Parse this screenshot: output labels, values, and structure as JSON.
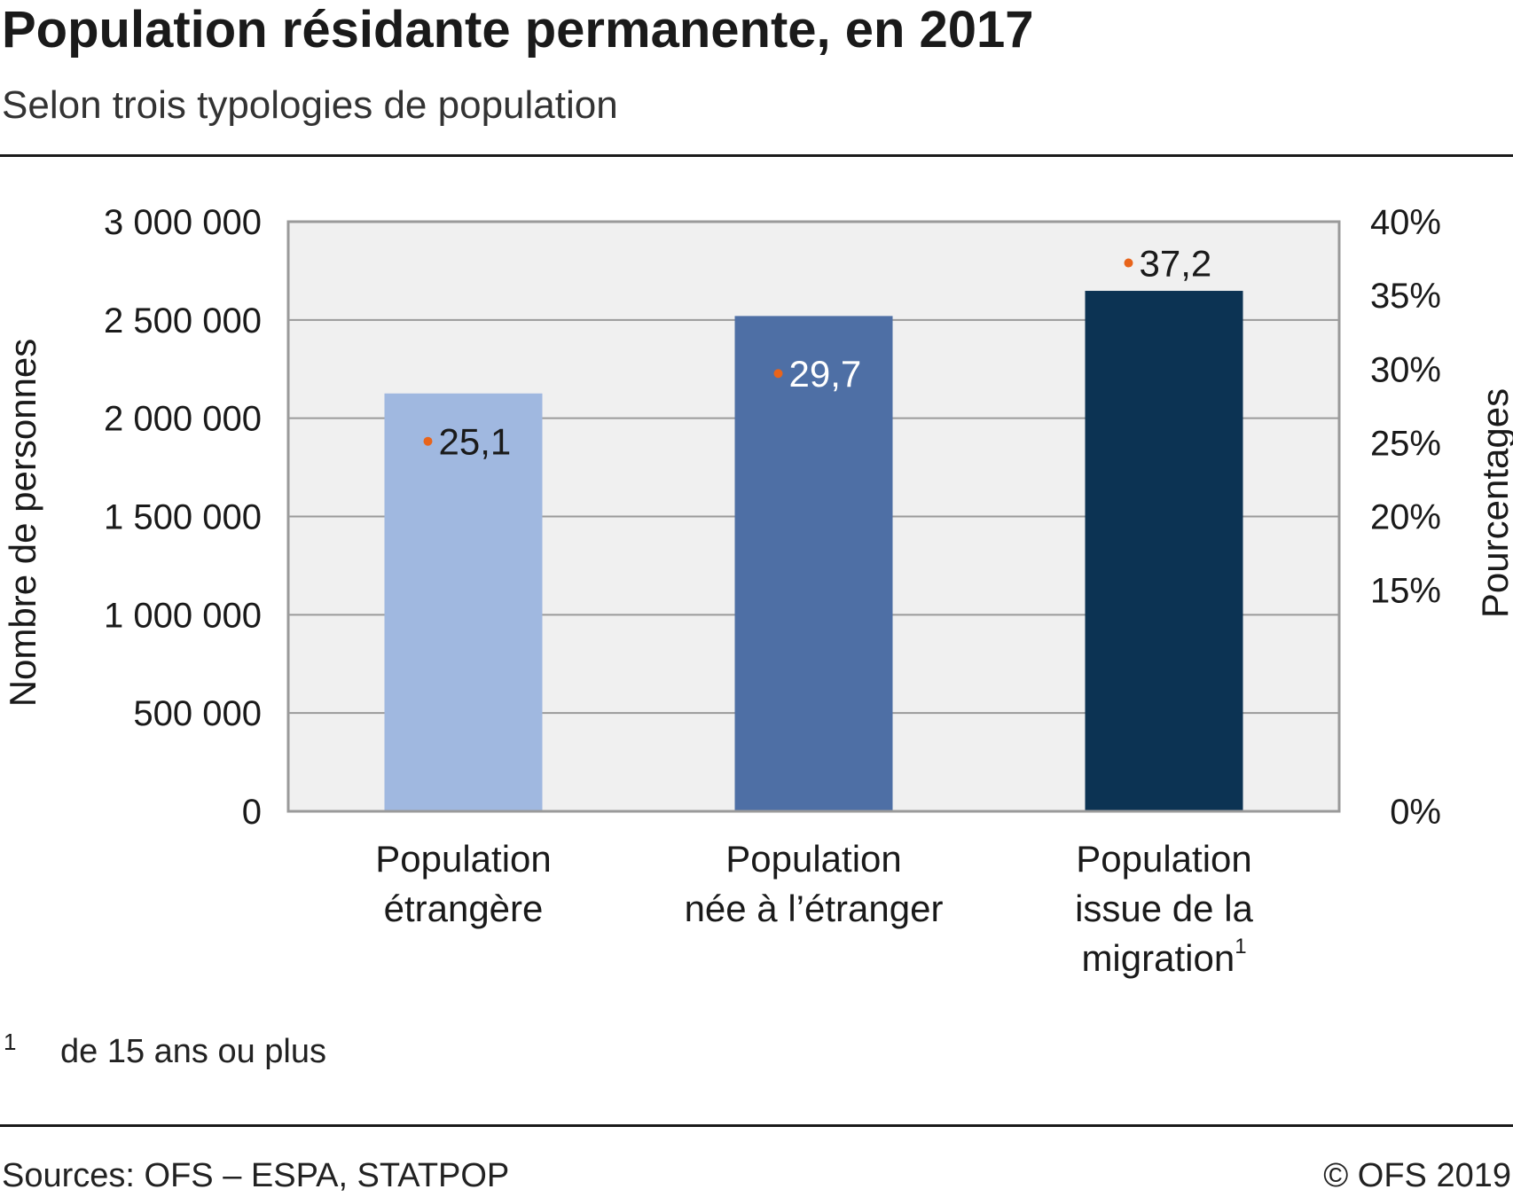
{
  "header": {
    "title": "Population résidante permanente, en 2017",
    "subtitle": "Selon trois typologies de population"
  },
  "footnote": {
    "mark": "1",
    "text": "de 15 ans ou plus"
  },
  "footer": {
    "source": "Sources: OFS – ESPA, STATPOP",
    "copyright": "© OFS 2019"
  },
  "colors": {
    "plot_background": "#f0f0f0",
    "grid": "#9a9a9a",
    "frame": "#9a9a9a",
    "marker": "#e8641b",
    "bar_colors": [
      "#a0b8e0",
      "#4e6fa5",
      "#0c3353"
    ],
    "label_colors": [
      "#1a1a1a",
      "#ffffff",
      "#1a1a1a"
    ]
  },
  "chart_data": {
    "type": "bar",
    "categories": [
      [
        "Population",
        "étrangère"
      ],
      [
        "Population",
        "née à l’étranger"
      ],
      [
        "Population",
        "issue de la",
        "migration"
      ]
    ],
    "category_superscripts": [
      "",
      "",
      "1"
    ],
    "series": [
      {
        "values": [
          2126000,
          2520000,
          2648000
        ],
        "axis": "left"
      },
      {
        "values": [
          25.1,
          29.7,
          37.2
        ],
        "value_labels": [
          "25,1",
          "29,7",
          "37,2"
        ],
        "axis": "right",
        "style": "dot-marker"
      }
    ],
    "ylabel": "Nombre de personnes",
    "y2label": "Pourcentages",
    "ylim": [
      0,
      3000000
    ],
    "y2lim": [
      0,
      40
    ],
    "yticks": [
      0,
      500000,
      1000000,
      1500000,
      2000000,
      2500000,
      3000000
    ],
    "ytick_labels": [
      "0",
      "500 000",
      "1 000 000",
      "1 500 000",
      "2 000 000",
      "2 500 000",
      "3 000 000"
    ],
    "y2ticks": [
      0,
      15,
      20,
      25,
      30,
      35,
      40
    ],
    "y2tick_labels": [
      "0%",
      "15%",
      "20%",
      "25%",
      "30%",
      "35%",
      "40%"
    ],
    "grid": true,
    "legend": "none"
  }
}
